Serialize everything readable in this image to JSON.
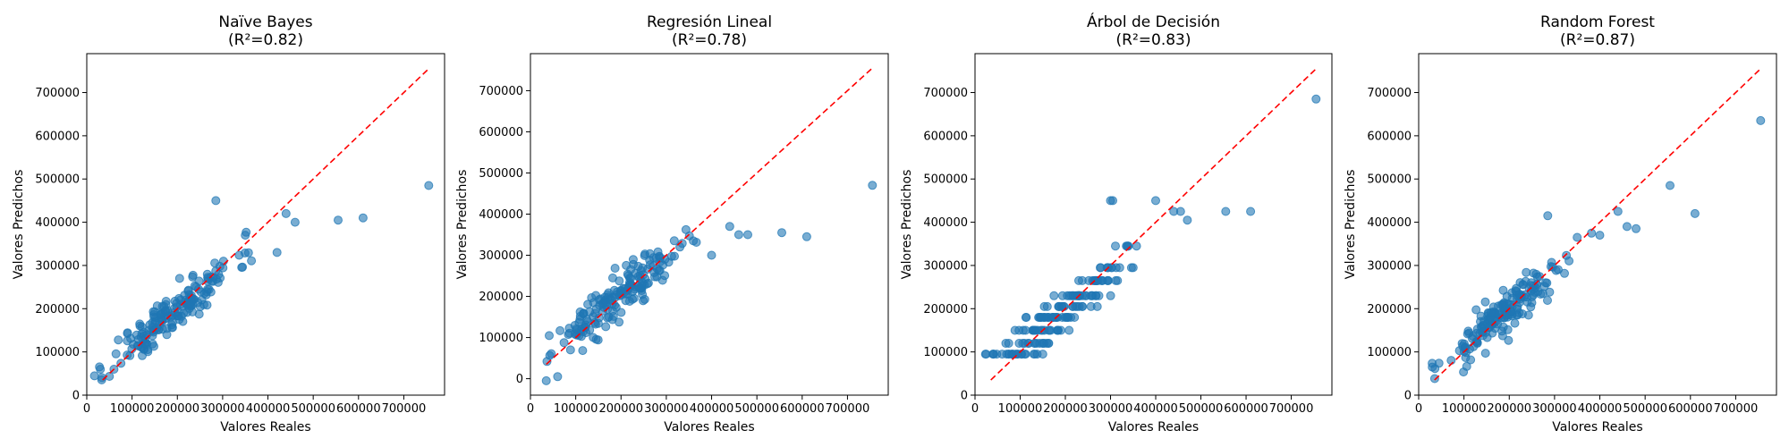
{
  "chart_data": [
    {
      "type": "scatter",
      "title_line1": "Naïve Bayes",
      "title_line2": "(R²=0.82)",
      "xlabel": "Valores Reales",
      "ylabel": "Valores Predichos",
      "xlim": [
        0,
        790000
      ],
      "ylim": [
        0,
        790000
      ],
      "xticks": [
        0,
        100000,
        200000,
        300000,
        400000,
        500000,
        600000,
        700000
      ],
      "yticks": [
        0,
        100000,
        200000,
        300000,
        400000,
        500000,
        600000,
        700000
      ],
      "reference_line": {
        "from": [
          35000,
          35000
        ],
        "to": [
          755000,
          755000
        ],
        "color": "#ff0000",
        "style": "dashed"
      },
      "outliers": [
        [
          285000,
          450000
        ],
        [
          440000,
          420000
        ],
        [
          460000,
          400000
        ],
        [
          555000,
          405000
        ],
        [
          610000,
          410000
        ],
        [
          755000,
          485000
        ],
        [
          30000,
          60000
        ],
        [
          60000,
          60000
        ],
        [
          420000,
          330000
        ],
        [
          350000,
          370000
        ]
      ],
      "cluster": {
        "center": [
          190000,
          190000
        ],
        "spread": [
          70000,
          55000
        ],
        "count": 180,
        "seed": 11
      }
    },
    {
      "type": "scatter",
      "title_line1": "Regresión Lineal",
      "title_line2": "(R²=0.78)",
      "xlabel": "Valores Reales",
      "ylabel": "Valores Predichos",
      "xlim": [
        0,
        790000
      ],
      "ylim": [
        -40000,
        790000
      ],
      "xticks": [
        0,
        100000,
        200000,
        300000,
        400000,
        500000,
        600000,
        700000
      ],
      "yticks": [
        0,
        100000,
        200000,
        300000,
        400000,
        500000,
        600000,
        700000
      ],
      "reference_line": {
        "from": [
          35000,
          35000
        ],
        "to": [
          755000,
          755000
        ],
        "color": "#ff0000",
        "style": "dashed"
      },
      "outliers": [
        [
          35000,
          -5000
        ],
        [
          60000,
          5000
        ],
        [
          440000,
          370000
        ],
        [
          460000,
          350000
        ],
        [
          480000,
          350000
        ],
        [
          555000,
          355000
        ],
        [
          610000,
          345000
        ],
        [
          755000,
          470000
        ],
        [
          330000,
          320000
        ],
        [
          400000,
          300000
        ]
      ],
      "cluster": {
        "center": [
          190000,
          195000
        ],
        "spread": [
          70000,
          55000
        ],
        "count": 180,
        "seed": 23
      }
    },
    {
      "type": "scatter",
      "title_line1": "Árbol de Decisión",
      "title_line2": "(R²=0.83)",
      "xlabel": "Valores Reales",
      "ylabel": "Valores Predichos",
      "xlim": [
        0,
        790000
      ],
      "ylim": [
        0,
        790000
      ],
      "xticks": [
        0,
        100000,
        200000,
        300000,
        400000,
        500000,
        600000,
        700000
      ],
      "yticks": [
        0,
        100000,
        200000,
        300000,
        400000,
        500000,
        600000,
        700000
      ],
      "reference_line": {
        "from": [
          35000,
          35000
        ],
        "to": [
          755000,
          755000
        ],
        "color": "#ff0000",
        "style": "dashed"
      },
      "outliers": [
        [
          300000,
          450000
        ],
        [
          305000,
          450000
        ],
        [
          400000,
          450000
        ],
        [
          440000,
          425000
        ],
        [
          455000,
          425000
        ],
        [
          470000,
          405000
        ],
        [
          555000,
          425000
        ],
        [
          610000,
          425000
        ],
        [
          755000,
          685000
        ],
        [
          40000,
          95000
        ],
        [
          70000,
          95000
        ],
        [
          90000,
          95000
        ],
        [
          110000,
          95000
        ],
        [
          130000,
          95000
        ],
        [
          150000,
          95000
        ]
      ],
      "cluster": {
        "center": [
          190000,
          190000
        ],
        "spread": [
          70000,
          50000
        ],
        "count": 170,
        "seed": 37
      },
      "quantize_y": [
        95000,
        120000,
        150000,
        180000,
        205000,
        230000,
        265000,
        295000,
        345000
      ]
    },
    {
      "type": "scatter",
      "title_line1": "Random Forest",
      "title_line2": "(R²=0.87)",
      "xlabel": "Valores Reales",
      "ylabel": "Valores Predichos",
      "xlim": [
        0,
        790000
      ],
      "ylim": [
        0,
        790000
      ],
      "xticks": [
        0,
        100000,
        200000,
        300000,
        400000,
        500000,
        600000,
        700000
      ],
      "yticks": [
        0,
        100000,
        200000,
        300000,
        400000,
        500000,
        600000,
        700000
      ],
      "reference_line": {
        "from": [
          35000,
          35000
        ],
        "to": [
          755000,
          755000
        ],
        "color": "#ff0000",
        "style": "dashed"
      },
      "outliers": [
        [
          285000,
          415000
        ],
        [
          440000,
          425000
        ],
        [
          460000,
          390000
        ],
        [
          480000,
          385000
        ],
        [
          555000,
          485000
        ],
        [
          610000,
          420000
        ],
        [
          755000,
          635000
        ],
        [
          30000,
          65000
        ],
        [
          400000,
          370000
        ],
        [
          350000,
          365000
        ]
      ],
      "cluster": {
        "center": [
          190000,
          190000
        ],
        "spread": [
          70000,
          55000
        ],
        "count": 180,
        "seed": 53
      }
    }
  ]
}
